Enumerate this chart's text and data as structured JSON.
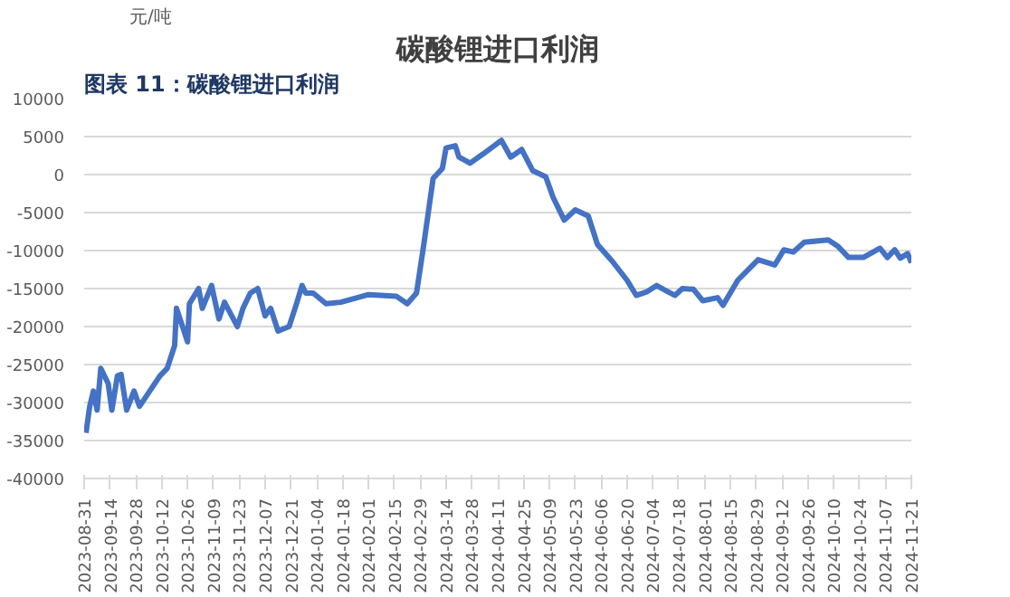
{
  "chart_data": {
    "type": "line",
    "title": "碳酸锂进口利润",
    "ylabel": "元/吨",
    "annotations": [
      "图表 11：碳酸锂进口利润"
    ],
    "x": [
      "2023-09-01",
      "2023-09-03",
      "2023-09-05",
      "2023-09-07",
      "2023-09-09",
      "2023-09-13",
      "2023-09-15",
      "2023-09-18",
      "2023-09-20",
      "2023-09-23",
      "2023-09-27",
      "2023-09-30",
      "2023-10-11",
      "2023-10-15",
      "2023-10-19",
      "2023-10-20",
      "2023-10-26",
      "2023-10-27",
      "2023-11-01",
      "2023-11-03",
      "2023-11-08",
      "2023-11-12",
      "2023-11-15",
      "2023-11-22",
      "2023-11-25",
      "2023-11-29",
      "2023-12-03",
      "2023-12-07",
      "2023-12-10",
      "2023-12-14",
      "2023-12-20",
      "2023-12-24",
      "2023-12-27",
      "2023-12-29",
      "2024-01-02",
      "2024-01-09",
      "2024-01-17",
      "2024-02-01",
      "2024-02-16",
      "2024-02-22",
      "2024-02-27",
      "2024-03-02",
      "2024-03-07",
      "2024-03-12",
      "2024-03-14",
      "2024-03-19",
      "2024-03-21",
      "2024-03-27",
      "2024-04-03",
      "2024-04-13",
      "2024-04-18",
      "2024-04-24",
      "2024-04-30",
      "2024-05-07",
      "2024-05-11",
      "2024-05-17",
      "2024-05-23",
      "2024-05-30",
      "2024-06-04",
      "2024-06-12",
      "2024-06-20",
      "2024-06-25",
      "2024-07-01",
      "2024-07-06",
      "2024-07-12",
      "2024-07-16",
      "2024-07-20",
      "2024-07-26",
      "2024-07-31",
      "2024-08-08",
      "2024-08-11",
      "2024-08-19",
      "2024-08-30",
      "2024-09-08",
      "2024-09-13",
      "2024-09-18",
      "2024-09-24",
      "2024-10-07",
      "2024-10-12",
      "2024-10-18",
      "2024-10-26",
      "2024-11-04",
      "2024-11-08",
      "2024-11-12",
      "2024-11-15",
      "2024-11-19",
      "2024-11-21"
    ],
    "series": [
      {
        "color": "#4472c4",
        "values": [
          -34000,
          -30500,
          -28500,
          -31000,
          -25500,
          -27500,
          -31000,
          -26500,
          -26300,
          -31000,
          -28500,
          -30500,
          -26500,
          -25500,
          -22500,
          -17600,
          -22000,
          -17000,
          -15000,
          -17600,
          -14600,
          -19000,
          -16800,
          -20000,
          -17600,
          -15600,
          -15000,
          -18600,
          -17600,
          -20600,
          -20000,
          -17000,
          -14600,
          -15600,
          -15600,
          -17000,
          -16800,
          -15800,
          -16000,
          -17000,
          -15600,
          -9100,
          -500,
          800,
          3500,
          3800,
          2300,
          1500,
          2700,
          4500,
          2300,
          3300,
          500,
          -300,
          -3000,
          -6000,
          -4650,
          -5450,
          -9200,
          -11400,
          -13900,
          -15900,
          -15400,
          -14600,
          -15400,
          -15900,
          -15000,
          -15100,
          -16600,
          -16200,
          -17200,
          -13900,
          -11200,
          -11900,
          -9900,
          -10200,
          -8900,
          -8600,
          -9400,
          -10900,
          -10900,
          -9700,
          -10900,
          -9900,
          -11000,
          -10400,
          -11600
        ]
      }
    ],
    "xlim": [
      "2023-08-31",
      "2024-11-21"
    ],
    "xticks": [
      "2023-08-31",
      "2023-09-14",
      "2023-09-28",
      "2023-10-12",
      "2023-10-26",
      "2023-11-09",
      "2023-11-23",
      "2023-12-07",
      "2023-12-21",
      "2024-01-04",
      "2024-01-18",
      "2024-02-01",
      "2024-02-15",
      "2024-02-29",
      "2024-03-14",
      "2024-03-28",
      "2024-04-11",
      "2024-04-25",
      "2024-05-09",
      "2024-05-23",
      "2024-06-06",
      "2024-06-20",
      "2024-07-04",
      "2024-07-18",
      "2024-08-01",
      "2024-08-15",
      "2024-08-29",
      "2024-09-12",
      "2024-09-26",
      "2024-10-10",
      "2024-10-24",
      "2024-11-07",
      "2024-11-21"
    ],
    "ylim": [
      -40000,
      10000
    ],
    "yticks": [
      -40000,
      -35000,
      -30000,
      -25000,
      -20000,
      -15000,
      -10000,
      -5000,
      0,
      5000,
      10000
    ],
    "grid": "y",
    "marker": "none",
    "line_style": "solid"
  }
}
